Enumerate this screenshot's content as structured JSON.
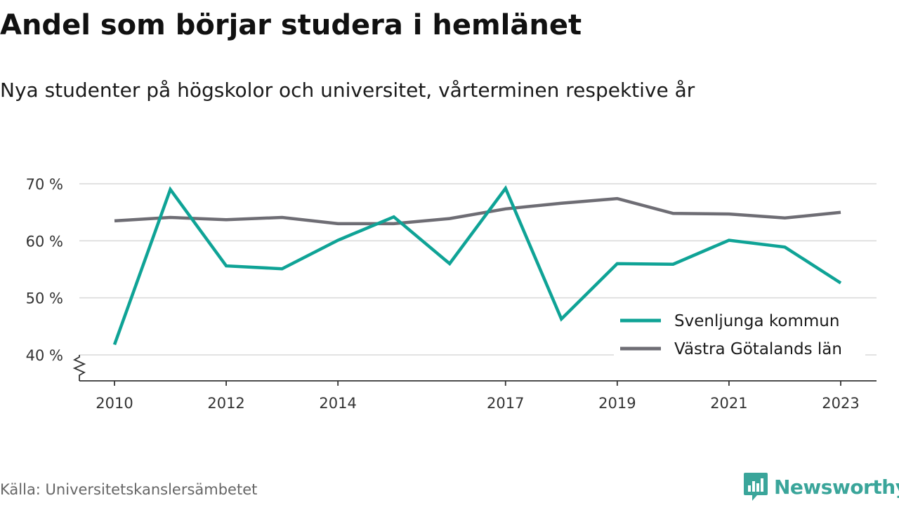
{
  "title": "Andel som börjar studera i hemlänet",
  "subtitle": "Nya studenter på högskolor och universitet, vårterminen respektive år",
  "source": "Källa: Universitetskanslersämbetet",
  "logo": {
    "text": "Newsworthy",
    "color": "#3aa59a"
  },
  "chart_data": {
    "type": "line",
    "x": [
      2010,
      2011,
      2012,
      2013,
      2014,
      2015,
      2016,
      2017,
      2018,
      2019,
      2020,
      2021,
      2022,
      2023
    ],
    "x_tick_labels": [
      "2010",
      "2012",
      "2014",
      "2017",
      "2019",
      "2021",
      "2023"
    ],
    "x_tick_values": [
      2010,
      2012,
      2014,
      2017,
      2019,
      2021,
      2023
    ],
    "y_ticks": [
      40,
      50,
      60,
      70
    ],
    "y_tick_labels": [
      "40 %",
      "50 %",
      "60 %",
      "70 %"
    ],
    "ylim": [
      40,
      70
    ],
    "axis_break": true,
    "grid": true,
    "legend_position": "bottom-right",
    "series": [
      {
        "name": "Svenljunga kommun",
        "color": "#0fa396",
        "values": [
          41.8,
          69.0,
          55.6,
          55.1,
          60.1,
          64.2,
          56.0,
          69.2,
          46.3,
          56.0,
          55.9,
          60.1,
          58.9,
          52.6
        ]
      },
      {
        "name": "Västra Götalands län",
        "color": "#6e6d74",
        "values": [
          63.5,
          64.1,
          63.7,
          64.1,
          63.0,
          63.0,
          63.9,
          65.6,
          66.6,
          67.4,
          64.8,
          64.7,
          64.0,
          65.0
        ]
      }
    ]
  }
}
